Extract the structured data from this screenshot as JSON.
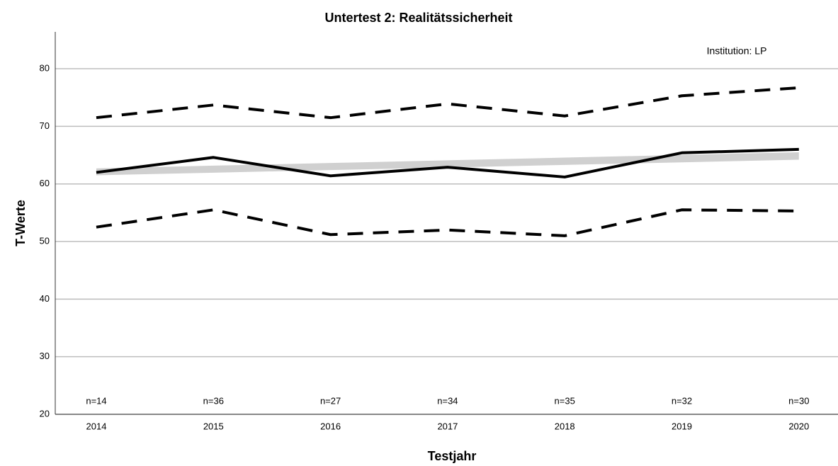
{
  "chart_data": {
    "type": "line",
    "title": "Untertest 2: Realitätssicherheit",
    "annotation": "Institution: LP",
    "xlabel": "Testjahr",
    "ylabel": "T-Werte",
    "categories": [
      "2014",
      "2015",
      "2016",
      "2017",
      "2018",
      "2019",
      "2020"
    ],
    "n_labels": [
      "n=14",
      "n=36",
      "n=27",
      "n=34",
      "n=35",
      "n=32",
      "n=30"
    ],
    "series": [
      {
        "style": "band",
        "color": "#d0d0d0",
        "low": [
          61.5,
          61.95,
          62.4,
          62.85,
          63.3,
          63.75,
          64.2
        ],
        "high": [
          62.7,
          63.17,
          63.63,
          64.1,
          64.57,
          65.03,
          65.5
        ]
      },
      {
        "style": "dashed",
        "color": "#000000",
        "values": [
          71.5,
          73.7,
          71.5,
          73.9,
          71.8,
          75.3,
          76.7
        ]
      },
      {
        "style": "dashed",
        "color": "#000000",
        "values": [
          52.5,
          55.5,
          51.2,
          52.0,
          51.0,
          55.5,
          55.3
        ]
      },
      {
        "style": "solid",
        "color": "#000000",
        "values": [
          62.0,
          64.6,
          61.4,
          62.9,
          61.2,
          65.4,
          66.0
        ]
      }
    ],
    "ylim": [
      20,
      86.4
    ],
    "yticks": [
      20,
      30,
      40,
      50,
      60,
      70,
      80
    ],
    "grid": true
  }
}
